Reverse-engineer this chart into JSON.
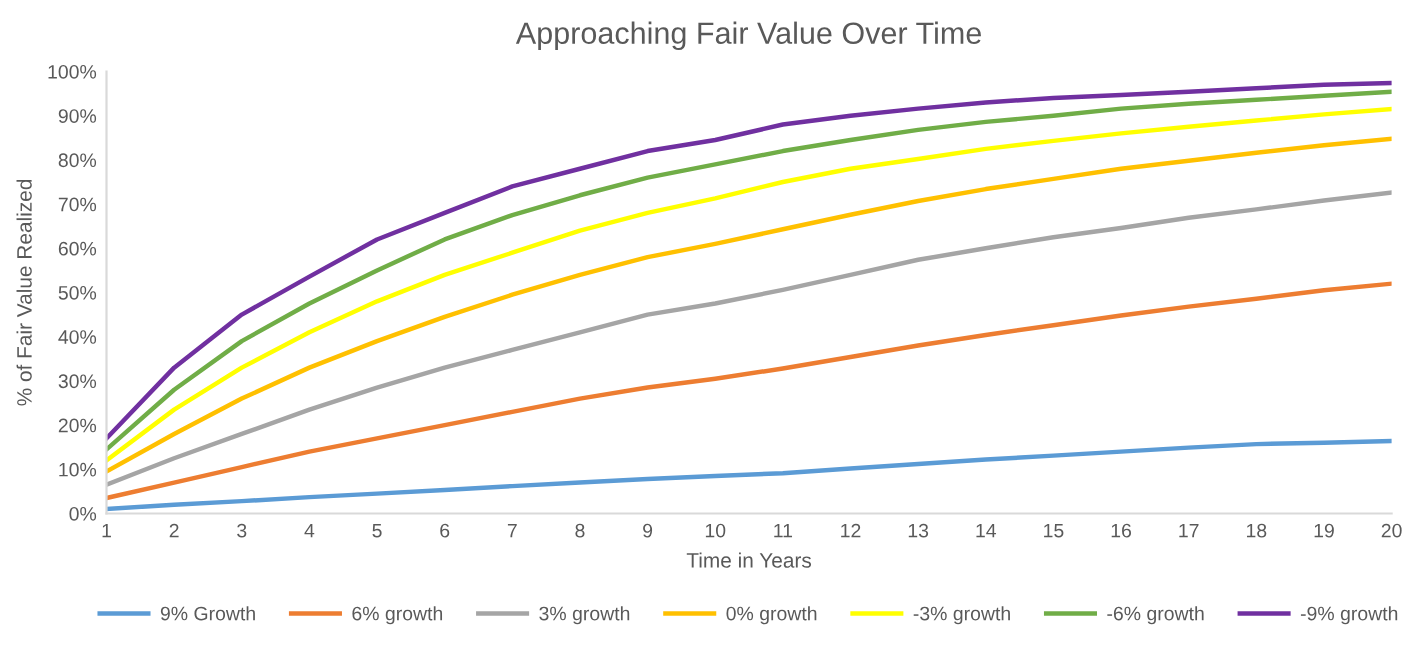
{
  "chart_data": {
    "type": "line",
    "title": "Approaching Fair Value Over Time",
    "xlabel": "Time in Years",
    "ylabel": "% of Fair Value Realized",
    "x": [
      1,
      2,
      3,
      4,
      5,
      6,
      7,
      8,
      9,
      10,
      11,
      12,
      13,
      14,
      15,
      16,
      17,
      18,
      19,
      20
    ],
    "series": [
      {
        "name": "9% Growth",
        "color": "#5b9bd5",
        "values": [
          1,
          2,
          2.8,
          3.7,
          4.5,
          5.3,
          6.2,
          7,
          7.8,
          8.5,
          9.1,
          10.2,
          11.2,
          12.2,
          13.1,
          14,
          14.9,
          15.7,
          16,
          16.4
        ]
      },
      {
        "name": "6% growth",
        "color": "#ed7d31",
        "values": [
          3.5,
          7,
          10.5,
          14,
          17,
          20,
          23,
          26,
          28.5,
          30.5,
          32.8,
          35.4,
          38,
          40.4,
          42.6,
          44.8,
          46.8,
          48.6,
          50.5,
          52
        ]
      },
      {
        "name": "3% growth",
        "color": "#a5a5a5",
        "values": [
          6.5,
          12.5,
          18,
          23.5,
          28.5,
          33,
          37,
          41,
          45,
          47.5,
          50.6,
          54,
          57.4,
          60,
          62.5,
          64.6,
          66.9,
          68.8,
          70.8,
          72.6
        ]
      },
      {
        "name": "0% growth",
        "color": "#ffc000",
        "values": [
          9.5,
          18,
          26,
          33,
          39,
          44.5,
          49.5,
          54,
          58,
          61,
          64.3,
          67.6,
          70.7,
          73.4,
          75.7,
          78,
          79.8,
          81.6,
          83.3,
          84.8
        ]
      },
      {
        "name": "-3% growth",
        "color": "#ffff00",
        "values": [
          12,
          23.5,
          33,
          41,
          48,
          54,
          59,
          64,
          68,
          71.3,
          75,
          78,
          80.2,
          82.5,
          84.3,
          86,
          87.5,
          88.9,
          90.3,
          91.5
        ]
      },
      {
        "name": "-6% growth",
        "color": "#70ad47",
        "values": [
          14.5,
          28,
          39,
          47.5,
          55,
          62,
          67.5,
          72,
          76,
          79,
          82,
          84.5,
          86.8,
          88.6,
          90,
          91.6,
          92.7,
          93.6,
          94.5,
          95.4
        ]
      },
      {
        "name": "-9% growth",
        "color": "#7030a0",
        "values": [
          17,
          33,
          45,
          53.6,
          62,
          68,
          74,
          78,
          82,
          84.5,
          88,
          90,
          91.6,
          93,
          94,
          94.7,
          95.4,
          96.2,
          97,
          97.4
        ]
      }
    ],
    "xlim": [
      1,
      20
    ],
    "xticks": [
      1,
      2,
      3,
      4,
      5,
      6,
      7,
      8,
      9,
      10,
      11,
      12,
      13,
      14,
      15,
      16,
      17,
      18,
      19,
      20
    ],
    "ylim": [
      0,
      100
    ],
    "yticks": [
      {
        "value": 0,
        "label": "0%"
      },
      {
        "value": 10,
        "label": "10%"
      },
      {
        "value": 20,
        "label": "20%"
      },
      {
        "value": 30,
        "label": "30%"
      },
      {
        "value": 40,
        "label": "40%"
      },
      {
        "value": 50,
        "label": "50%"
      },
      {
        "value": 60,
        "label": "60%"
      },
      {
        "value": 70,
        "label": "70%"
      },
      {
        "value": 80,
        "label": "80%"
      },
      {
        "value": 90,
        "label": "90%"
      },
      {
        "value": 100,
        "label": "100%"
      }
    ],
    "legend": "bottom",
    "grid": false,
    "marker": "none",
    "line_style": "solid"
  }
}
